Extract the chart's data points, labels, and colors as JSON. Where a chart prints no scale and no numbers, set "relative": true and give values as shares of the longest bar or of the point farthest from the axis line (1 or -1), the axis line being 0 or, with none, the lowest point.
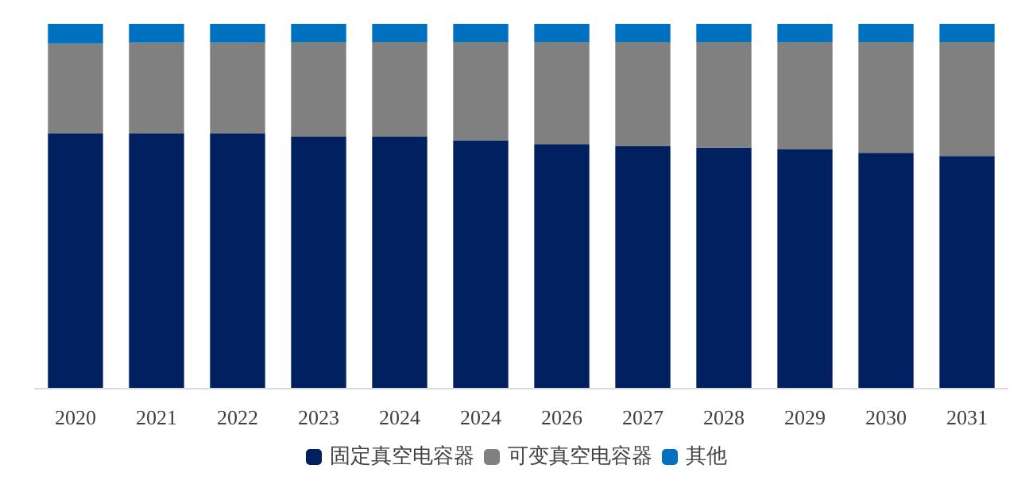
{
  "chart_data": {
    "type": "bar",
    "stacked": true,
    "relative": true,
    "categories": [
      "2020",
      "2021",
      "2022",
      "2023",
      "2024",
      "2024",
      "2026",
      "2027",
      "2028",
      "2029",
      "2030",
      "2031"
    ],
    "series": [
      {
        "name": "固定真空电容器",
        "color": "#002060",
        "values": [
          0.7,
          0.7,
          0.7,
          0.69,
          0.69,
          0.68,
          0.67,
          0.665,
          0.66,
          0.655,
          0.646,
          0.637
        ]
      },
      {
        "name": "可变真空电容器",
        "color": "#808080",
        "values": [
          0.246,
          0.248,
          0.248,
          0.26,
          0.26,
          0.27,
          0.28,
          0.285,
          0.29,
          0.295,
          0.304,
          0.313
        ]
      },
      {
        "name": "其他",
        "color": "#0070c0",
        "values": [
          0.054,
          0.052,
          0.052,
          0.05,
          0.05,
          0.05,
          0.05,
          0.05,
          0.05,
          0.05,
          0.05,
          0.05
        ]
      }
    ],
    "legend": "bottom"
  }
}
